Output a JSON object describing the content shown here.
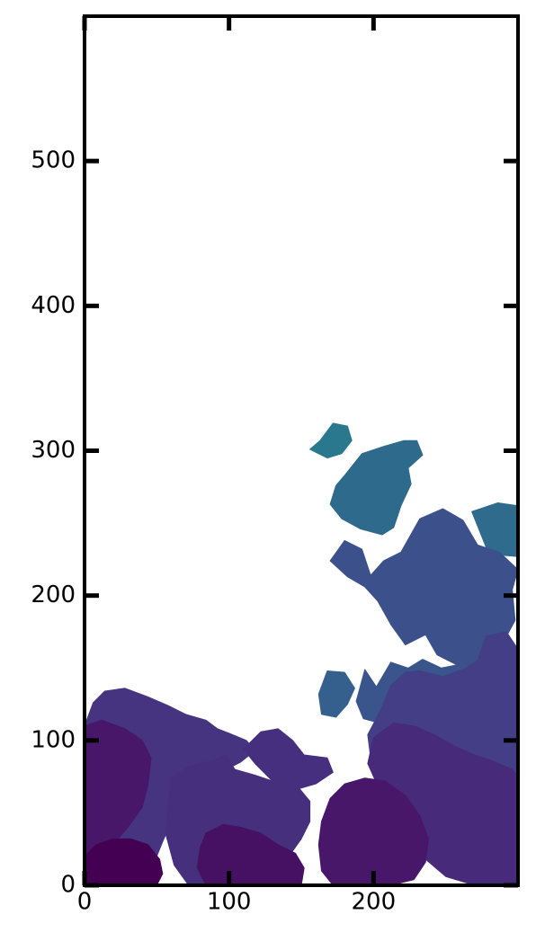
{
  "chart_data": {
    "type": "heatmap",
    "title": "",
    "xlabel": "",
    "ylabel": "",
    "xlim": [
      0,
      300
    ],
    "ylim": [
      0,
      600
    ],
    "grid": false,
    "legend": "none",
    "colormap": "viridis",
    "x_ticks": [
      0,
      100,
      200
    ],
    "y_ticks": [
      0,
      100,
      200,
      300,
      400,
      500
    ],
    "regions": [
      {
        "color": "#29788e",
        "points": [
          [
            163,
            307
          ],
          [
            172,
            319
          ],
          [
            182,
            317
          ],
          [
            185,
            307
          ],
          [
            178,
            298
          ],
          [
            168,
            295
          ],
          [
            156,
            301
          ]
        ]
      },
      {
        "color": "#2e6a8c",
        "points": [
          [
            180,
            283
          ],
          [
            192,
            298
          ],
          [
            207,
            303
          ],
          [
            221,
            307
          ],
          [
            230,
            307
          ],
          [
            234,
            297
          ],
          [
            224,
            288
          ],
          [
            226,
            277
          ],
          [
            219,
            262
          ],
          [
            214,
            247
          ],
          [
            206,
            242
          ],
          [
            191,
            246
          ],
          [
            178,
            253
          ],
          [
            170,
            263
          ],
          [
            174,
            276
          ]
        ]
      },
      {
        "color": "#2f6b8c",
        "points": [
          [
            268,
            258
          ],
          [
            286,
            264
          ],
          [
            300,
            262
          ],
          [
            300,
            227
          ],
          [
            287,
            228
          ],
          [
            278,
            233
          ]
        ]
      },
      {
        "color": "#35608d",
        "points": [
          [
            162,
            132
          ],
          [
            168,
            148
          ],
          [
            180,
            147
          ],
          [
            187,
            136
          ],
          [
            182,
            125
          ],
          [
            174,
            116
          ],
          [
            164,
            118
          ]
        ]
      },
      {
        "color": "#3a548c",
        "points": [
          [
            188,
            127
          ],
          [
            194,
            149
          ],
          [
            202,
            137
          ],
          [
            212,
            154
          ],
          [
            224,
            150
          ],
          [
            234,
            156
          ],
          [
            247,
            150
          ],
          [
            262,
            153
          ],
          [
            272,
            148
          ],
          [
            262,
            134
          ],
          [
            251,
            122
          ],
          [
            240,
            113
          ],
          [
            226,
            103
          ],
          [
            214,
            110
          ],
          [
            204,
            112
          ],
          [
            193,
            115
          ]
        ]
      },
      {
        "color": "#3c508b",
        "points": [
          [
            170,
            224
          ],
          [
            180,
            238
          ],
          [
            192,
            232
          ],
          [
            198,
            214
          ],
          [
            207,
            224
          ],
          [
            219,
            230
          ],
          [
            232,
            253
          ],
          [
            248,
            260
          ],
          [
            262,
            252
          ],
          [
            272,
            235
          ],
          [
            287,
            230
          ],
          [
            300,
            218
          ],
          [
            296,
            204
          ],
          [
            298,
            183
          ],
          [
            290,
            168
          ],
          [
            278,
            157
          ],
          [
            262,
            150
          ],
          [
            244,
            159
          ],
          [
            236,
            173
          ],
          [
            222,
            166
          ],
          [
            212,
            180
          ],
          [
            203,
            196
          ],
          [
            194,
            206
          ],
          [
            182,
            213
          ]
        ]
      },
      {
        "color": "#433e85",
        "points": [
          [
            205,
            121
          ],
          [
            212,
            138
          ],
          [
            222,
            147
          ],
          [
            232,
            148
          ],
          [
            248,
            144
          ],
          [
            264,
            150
          ],
          [
            272,
            155
          ],
          [
            278,
            172
          ],
          [
            292,
            175
          ],
          [
            300,
            163
          ],
          [
            300,
            12
          ],
          [
            290,
            8
          ],
          [
            272,
            16
          ],
          [
            258,
            27
          ],
          [
            248,
            40
          ],
          [
            236,
            58
          ],
          [
            224,
            72
          ],
          [
            210,
            80
          ],
          [
            198,
            88
          ],
          [
            196,
            104
          ]
        ]
      },
      {
        "color": "#463480",
        "points": [
          [
            0,
            110
          ],
          [
            6,
            126
          ],
          [
            14,
            134
          ],
          [
            28,
            136
          ],
          [
            44,
            130
          ],
          [
            58,
            124
          ],
          [
            70,
            118
          ],
          [
            84,
            114
          ],
          [
            92,
            108
          ],
          [
            100,
            105
          ],
          [
            112,
            100
          ],
          [
            118,
            93
          ],
          [
            108,
            85
          ],
          [
            98,
            80
          ],
          [
            84,
            72
          ],
          [
            72,
            62
          ],
          [
            62,
            48
          ],
          [
            54,
            30
          ],
          [
            48,
            15
          ],
          [
            40,
            5
          ],
          [
            20,
            0
          ],
          [
            0,
            0
          ]
        ]
      },
      {
        "color": "#462f7e",
        "points": [
          [
            110,
            94
          ],
          [
            122,
            106
          ],
          [
            134,
            108
          ],
          [
            144,
            100
          ],
          [
            152,
            90
          ],
          [
            168,
            88
          ],
          [
            172,
            78
          ],
          [
            160,
            70
          ],
          [
            146,
            66
          ],
          [
            130,
            72
          ],
          [
            118,
            84
          ]
        ]
      },
      {
        "color": "#472a7a",
        "points": [
          [
            200,
            102
          ],
          [
            214,
            112
          ],
          [
            228,
            110
          ],
          [
            242,
            104
          ],
          [
            256,
            96
          ],
          [
            270,
            90
          ],
          [
            282,
            86
          ],
          [
            296,
            80
          ],
          [
            300,
            75
          ],
          [
            300,
            0
          ],
          [
            270,
            0
          ],
          [
            250,
            6
          ],
          [
            236,
            18
          ],
          [
            224,
            32
          ],
          [
            212,
            48
          ],
          [
            204,
            66
          ],
          [
            196,
            84
          ]
        ]
      },
      {
        "color": "#46307e",
        "points": [
          [
            60,
            74
          ],
          [
            72,
            82
          ],
          [
            88,
            86
          ],
          [
            98,
            90
          ],
          [
            104,
            80
          ],
          [
            118,
            76
          ],
          [
            130,
            72
          ],
          [
            146,
            70
          ],
          [
            156,
            58
          ],
          [
            156,
            44
          ],
          [
            150,
            32
          ],
          [
            140,
            18
          ],
          [
            128,
            8
          ],
          [
            110,
            2
          ],
          [
            90,
            0
          ],
          [
            72,
            0
          ],
          [
            62,
            14
          ],
          [
            56,
            36
          ]
        ]
      },
      {
        "color": "#481769",
        "points": [
          [
            0,
            0
          ],
          [
            0,
            110
          ],
          [
            12,
            114
          ],
          [
            28,
            108
          ],
          [
            40,
            100
          ],
          [
            46,
            88
          ],
          [
            44,
            70
          ],
          [
            40,
            54
          ],
          [
            30,
            40
          ],
          [
            16,
            24
          ],
          [
            8,
            10
          ]
        ]
      },
      {
        "color": "#481769",
        "points": [
          [
            170,
            60
          ],
          [
            180,
            70
          ],
          [
            194,
            74
          ],
          [
            208,
            72
          ],
          [
            222,
            62
          ],
          [
            232,
            48
          ],
          [
            238,
            32
          ],
          [
            236,
            16
          ],
          [
            228,
            4
          ],
          [
            212,
            0
          ],
          [
            190,
            0
          ],
          [
            172,
            0
          ],
          [
            164,
            10
          ],
          [
            162,
            28
          ],
          [
            164,
            44
          ]
        ]
      },
      {
        "color": "#471163",
        "points": [
          [
            84,
            36
          ],
          [
            96,
            42
          ],
          [
            108,
            40
          ],
          [
            122,
            36
          ],
          [
            134,
            28
          ],
          [
            146,
            22
          ],
          [
            152,
            12
          ],
          [
            150,
            0
          ],
          [
            128,
            0
          ],
          [
            104,
            0
          ],
          [
            84,
            0
          ],
          [
            78,
            12
          ],
          [
            80,
            26
          ]
        ]
      },
      {
        "color": "#440154",
        "points": [
          [
            0,
            0
          ],
          [
            0,
            20
          ],
          [
            8,
            28
          ],
          [
            20,
            32
          ],
          [
            32,
            32
          ],
          [
            44,
            28
          ],
          [
            52,
            18
          ],
          [
            54,
            8
          ],
          [
            50,
            0
          ],
          [
            26,
            0
          ]
        ]
      }
    ]
  }
}
